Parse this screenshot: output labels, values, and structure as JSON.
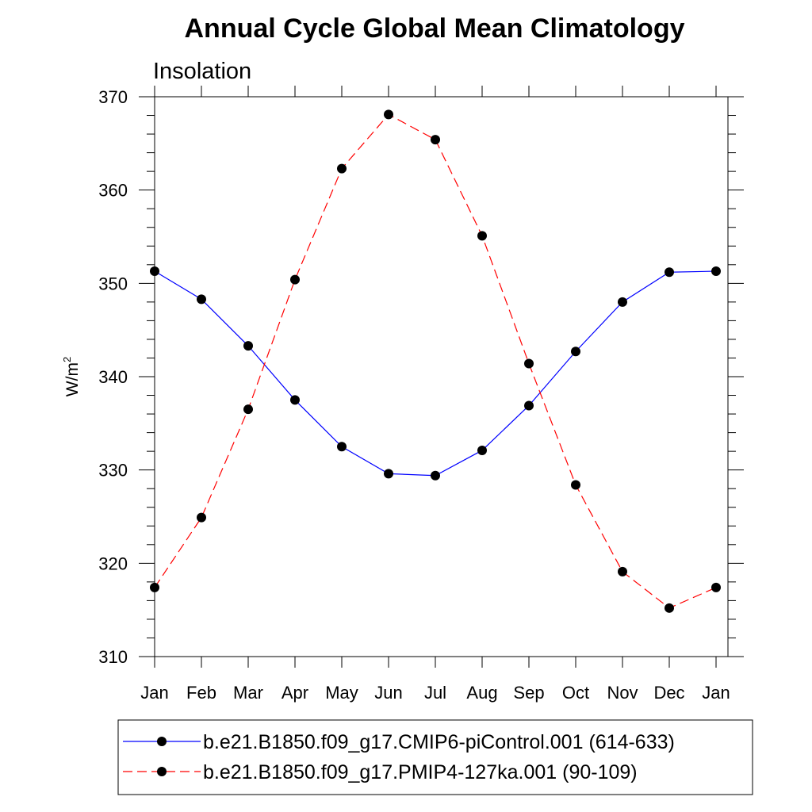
{
  "chart_data": {
    "type": "line",
    "title": "Annual Cycle Global Mean Climatology",
    "subtitle": "Insolation",
    "ylabel": "W/m",
    "ylabel_sup": "2",
    "xlabel": "",
    "categories": [
      "Jan",
      "Feb",
      "Mar",
      "Apr",
      "May",
      "Jun",
      "Jul",
      "Aug",
      "Sep",
      "Oct",
      "Nov",
      "Dec",
      "Jan"
    ],
    "ylim": [
      310,
      370
    ],
    "yticks": [
      310,
      320,
      330,
      340,
      350,
      360,
      370
    ],
    "series": [
      {
        "name": "b.e21.B1850.f09_g17.CMIP6-piControl.001 (614-633)",
        "color": "#0000ff",
        "line_style": "solid",
        "marker": "filled-circle",
        "values": [
          351.3,
          348.3,
          343.3,
          337.5,
          332.5,
          329.6,
          329.4,
          332.1,
          336.9,
          342.7,
          348.0,
          351.2,
          351.3
        ]
      },
      {
        "name": "b.e21.B1850.f09_g17.PMIP4-127ka.001 (90-109)",
        "color": "#ff0000",
        "line_style": "dashed",
        "marker": "filled-circle",
        "values": [
          317.4,
          324.9,
          336.5,
          350.4,
          362.3,
          368.1,
          365.4,
          355.1,
          341.4,
          328.4,
          319.1,
          315.2,
          317.4
        ]
      }
    ],
    "grid": false,
    "legend_position": "bottom"
  }
}
